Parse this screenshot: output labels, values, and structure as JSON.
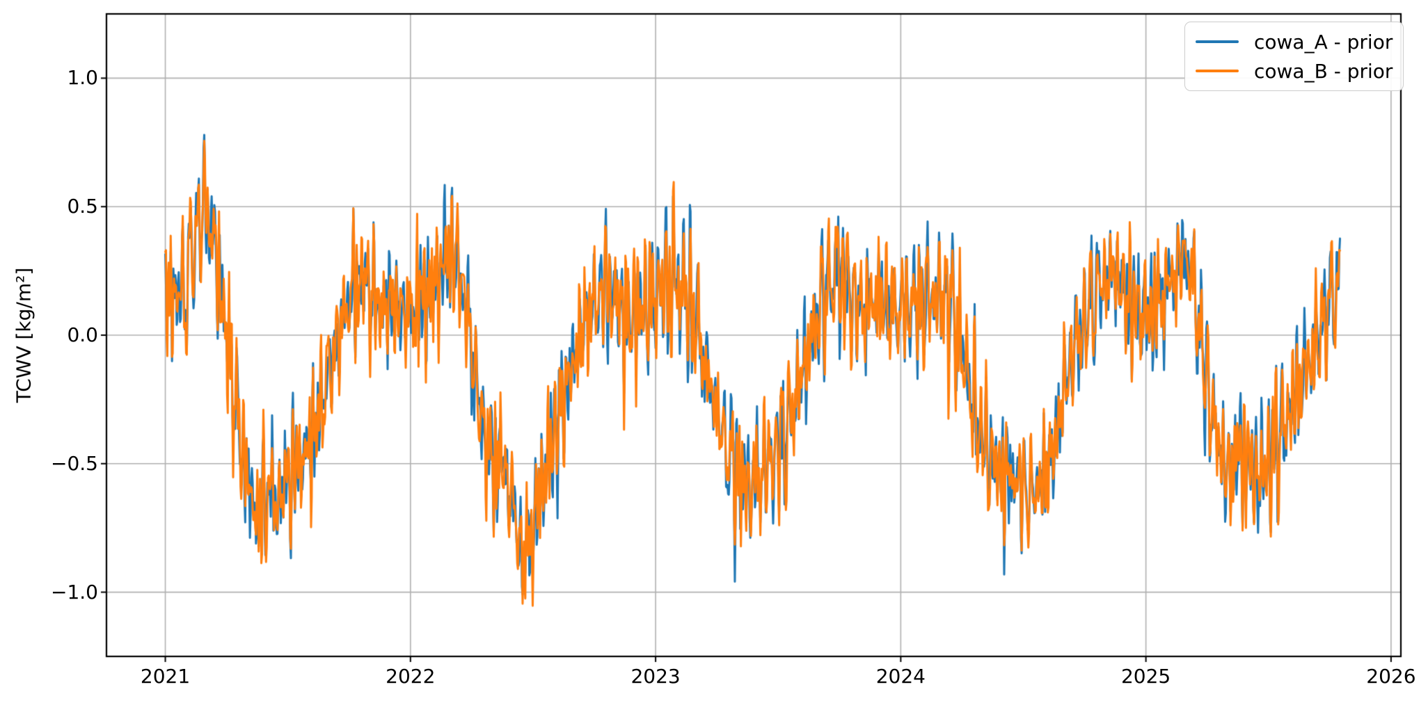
{
  "chart_data": {
    "type": "line",
    "title": "",
    "xlabel": "",
    "ylabel": "TCWV [kg/m²]",
    "background": "#ffffff",
    "grid": true,
    "grid_color": "#b0b0b0",
    "spine_color": "#000000",
    "tick_color": "#000000",
    "text_color": "#000000",
    "xlim": [
      2020.76,
      2026.04
    ],
    "ylim": [
      -1.25,
      1.25
    ],
    "xticks": [
      {
        "value": 2021,
        "label": "2021"
      },
      {
        "value": 2022,
        "label": "2022"
      },
      {
        "value": 2023,
        "label": "2023"
      },
      {
        "value": 2024,
        "label": "2024"
      },
      {
        "value": 2025,
        "label": "2025"
      },
      {
        "value": 2026,
        "label": "2026"
      }
    ],
    "yticks": [
      {
        "value": 1.0,
        "label": "1.0"
      },
      {
        "value": 0.5,
        "label": "0.5"
      },
      {
        "value": 0.0,
        "label": "0.0"
      },
      {
        "value": -0.5,
        "label": "−0.5"
      },
      {
        "value": -1.0,
        "label": "−1.0"
      }
    ],
    "legend": {
      "position": "upper right",
      "border_color": "#cccccc",
      "background": "#ffffff"
    },
    "sampling": {
      "x_start": 2021.0,
      "x_end": 2025.7917,
      "points_per_year": 365,
      "anchor_step_years": 0.0416667
    },
    "noise": {
      "components": 30,
      "freq_min": 18,
      "freq_max": 115,
      "base_amplitude": 0.035,
      "shared_weight": 0.8,
      "own_weight": 0.45,
      "seeds": {
        "shared": 1337,
        "cowa_A": 2021,
        "cowa_B": 2022
      }
    },
    "observed_extremes": {
      "max": {
        "t": 2021.15,
        "value": 0.67
      },
      "min": {
        "t": 2022.46,
        "value": -1.04
      }
    },
    "series": [
      {
        "name": "cowa_A",
        "label": "cowa_A - prior",
        "color": "#1f77b4",
        "anchor_values": [
          0.15,
          0.15,
          0.18,
          0.4,
          0.52,
          0.3,
          0.0,
          -0.3,
          -0.55,
          -0.72,
          -0.6,
          -0.65,
          -0.55,
          -0.5,
          -0.45,
          -0.3,
          -0.15,
          0.0,
          0.15,
          0.22,
          0.18,
          0.1,
          0.12,
          0.1,
          0.08,
          0.15,
          0.15,
          0.25,
          0.35,
          0.22,
          -0.05,
          -0.35,
          -0.5,
          -0.48,
          -0.65,
          -0.88,
          -0.75,
          -0.55,
          -0.4,
          -0.25,
          -0.1,
          0.05,
          0.12,
          0.2,
          0.15,
          0.05,
          0.08,
          0.12,
          0.15,
          0.2,
          0.22,
          0.15,
          0.05,
          -0.15,
          -0.3,
          -0.45,
          -0.55,
          -0.6,
          -0.55,
          -0.5,
          -0.45,
          -0.35,
          -0.2,
          -0.05,
          0.1,
          0.2,
          0.25,
          0.15,
          0.1,
          0.12,
          0.15,
          0.1,
          0.1,
          0.12,
          0.12,
          0.15,
          0.15,
          0.1,
          -0.05,
          -0.25,
          -0.4,
          -0.5,
          -0.55,
          -0.55,
          -0.6,
          -0.62,
          -0.55,
          -0.45,
          -0.2,
          -0.05,
          0.05,
          0.15,
          0.22,
          0.25,
          0.15,
          0.1,
          0.08,
          0.12,
          0.18,
          0.25,
          0.32,
          0.1,
          -0.2,
          -0.4,
          -0.55,
          -0.45,
          -0.5,
          -0.55,
          -0.5,
          -0.4,
          -0.3,
          -0.2,
          -0.1,
          0.0,
          0.12,
          0.22
        ]
      },
      {
        "name": "cowa_B",
        "label": "cowa_B - prior",
        "color": "#ff7f0e",
        "anchor_values": [
          0.15,
          0.15,
          0.18,
          0.4,
          0.52,
          0.3,
          0.0,
          -0.3,
          -0.55,
          -0.72,
          -0.6,
          -0.65,
          -0.55,
          -0.5,
          -0.45,
          -0.3,
          -0.15,
          0.0,
          0.15,
          0.22,
          0.18,
          0.1,
          0.12,
          0.1,
          0.08,
          0.15,
          0.15,
          0.25,
          0.35,
          0.22,
          -0.05,
          -0.35,
          -0.5,
          -0.48,
          -0.65,
          -0.88,
          -0.75,
          -0.55,
          -0.4,
          -0.25,
          -0.1,
          0.05,
          0.12,
          0.2,
          0.15,
          0.05,
          0.08,
          0.12,
          0.15,
          0.2,
          0.22,
          0.15,
          0.05,
          -0.15,
          -0.3,
          -0.45,
          -0.55,
          -0.6,
          -0.55,
          -0.5,
          -0.45,
          -0.35,
          -0.2,
          -0.05,
          0.1,
          0.2,
          0.25,
          0.15,
          0.1,
          0.12,
          0.15,
          0.1,
          0.1,
          0.12,
          0.12,
          0.15,
          0.15,
          0.1,
          -0.05,
          -0.25,
          -0.4,
          -0.5,
          -0.55,
          -0.55,
          -0.6,
          -0.62,
          -0.55,
          -0.45,
          -0.2,
          -0.05,
          0.05,
          0.15,
          0.22,
          0.25,
          0.15,
          0.1,
          0.08,
          0.12,
          0.18,
          0.25,
          0.32,
          0.1,
          -0.2,
          -0.4,
          -0.55,
          -0.45,
          -0.5,
          -0.55,
          -0.5,
          -0.4,
          -0.3,
          -0.2,
          -0.1,
          0.0,
          0.12,
          0.22
        ]
      }
    ]
  }
}
